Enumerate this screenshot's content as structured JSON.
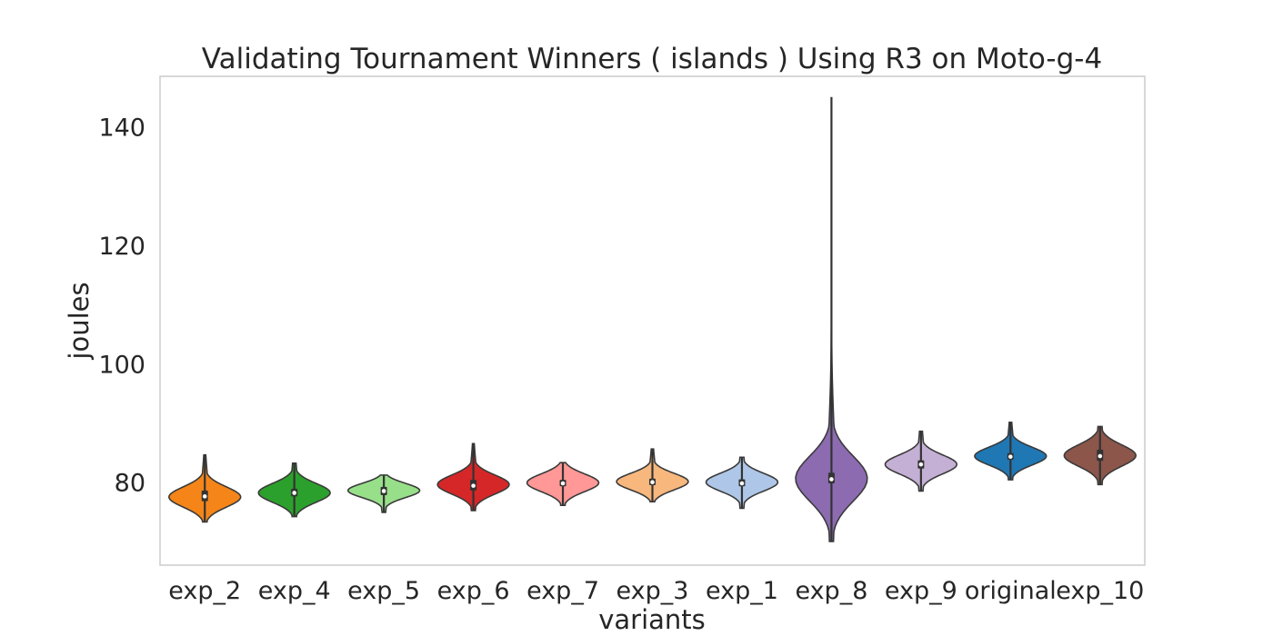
{
  "chart_data": {
    "type": "violin",
    "title": "Validating Tournament Winners ( islands ) Using R3 on Moto-g-4",
    "xlabel": "variants",
    "ylabel": "joules",
    "ylim": [
      66.0,
      148.5
    ],
    "yticks": [
      80,
      100,
      120,
      140
    ],
    "grid": false,
    "categories": [
      "exp_2",
      "exp_4",
      "exp_5",
      "exp_6",
      "exp_7",
      "exp_3",
      "exp_1",
      "exp_8",
      "exp_9",
      "original",
      "exp_10"
    ],
    "series": [
      {
        "name": "exp_2",
        "color": "#f58518",
        "min": 73.3,
        "q1": 76.8,
        "median": 77.6,
        "q3": 78.6,
        "max": 84.6,
        "mode": 77.5,
        "spread": 1.7,
        "tail_top": 84.6
      },
      {
        "name": "exp_4",
        "color": "#2ca02c",
        "min": 74.2,
        "q1": 77.6,
        "median": 78.2,
        "q3": 78.9,
        "max": 83.2,
        "mode": 78.2,
        "spread": 1.6,
        "tail_top": 83.2
      },
      {
        "name": "exp_5",
        "color": "#98df8a",
        "min": 74.9,
        "q1": 77.8,
        "median": 78.5,
        "q3": 79.2,
        "max": 81.2,
        "mode": 78.6,
        "spread": 1.2,
        "tail_top": 81.2
      },
      {
        "name": "exp_6",
        "color": "#d62728",
        "min": 75.2,
        "q1": 78.6,
        "median": 79.4,
        "q3": 80.4,
        "max": 86.5,
        "mode": 79.6,
        "spread": 1.6,
        "tail_top": 86.5
      },
      {
        "name": "exp_7",
        "color": "#ff9896",
        "min": 76.1,
        "q1": 79.3,
        "median": 79.8,
        "q3": 80.4,
        "max": 83.3,
        "mode": 79.9,
        "spread": 1.5,
        "tail_top": 83.3
      },
      {
        "name": "exp_3",
        "color": "#f7b77d",
        "min": 76.7,
        "q1": 79.5,
        "median": 80.0,
        "q3": 80.6,
        "max": 85.6,
        "mode": 80.1,
        "spread": 1.4,
        "tail_top": 85.6
      },
      {
        "name": "exp_1",
        "color": "#aec7e8",
        "min": 75.6,
        "q1": 79.3,
        "median": 79.8,
        "q3": 80.5,
        "max": 84.2,
        "mode": 80.0,
        "spread": 1.5,
        "tail_top": 84.2
      },
      {
        "name": "exp_8",
        "color": "#8c6bb1",
        "min": 70.0,
        "q1": 79.8,
        "median": 80.5,
        "q3": 81.6,
        "max": 145.0,
        "mode": 80.6,
        "spread": 3.8,
        "tail_top": 145.0
      },
      {
        "name": "exp_9",
        "color": "#c5b0d5",
        "min": 78.5,
        "q1": 82.3,
        "median": 83.0,
        "q3": 83.7,
        "max": 88.6,
        "mode": 83.0,
        "spread": 1.6,
        "tail_top": 88.6
      },
      {
        "name": "original",
        "color": "#1f77b4",
        "min": 80.4,
        "q1": 83.8,
        "median": 84.3,
        "q3": 84.9,
        "max": 90.1,
        "mode": 84.4,
        "spread": 1.5,
        "tail_top": 90.1
      },
      {
        "name": "exp_10",
        "color": "#8c564b",
        "min": 79.6,
        "q1": 83.6,
        "median": 84.4,
        "q3": 85.5,
        "max": 89.4,
        "mode": 84.5,
        "spread": 1.8,
        "tail_top": 89.4
      }
    ]
  }
}
